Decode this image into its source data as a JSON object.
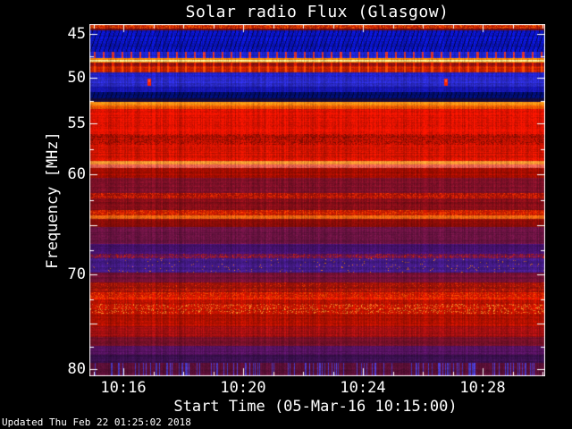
{
  "title": "Solar radio Flux (Glasgow)",
  "x_axis": {
    "label": "Start Time (05-Mar-16 10:15:00)"
  },
  "y_axis": {
    "label": "Frequency [MHz]"
  },
  "footer": {
    "updated": "Updated Thu Feb 22 01:25:02 2018"
  },
  "colors": {
    "text": "#ffffff",
    "background": "#000000",
    "frame": "#ffffff"
  },
  "chart_data": {
    "type": "heatmap",
    "title": "Solar radio Flux (Glasgow)",
    "xlabel": "Start Time (05-Mar-16 10:15:00)",
    "ylabel": "Frequency [MHz]",
    "x_start": "10:15",
    "x_end": "10:30",
    "x_minutes_total": 15,
    "x_minor_tick_interval_min": 1,
    "x_major_ticks": [
      {
        "minute": 1,
        "label": "10:16"
      },
      {
        "minute": 5,
        "label": "10:20"
      },
      {
        "minute": 9,
        "label": "10:24"
      },
      {
        "minute": 13,
        "label": "10:28"
      }
    ],
    "y_ticks": [
      {
        "mhz": 45,
        "label": "45"
      },
      {
        "mhz": 50,
        "label": "50"
      },
      {
        "mhz": 55,
        "label": "55"
      },
      {
        "mhz": 60,
        "label": "60"
      },
      {
        "mhz": 65,
        "label": null
      },
      {
        "mhz": 70,
        "label": "70"
      },
      {
        "mhz": 75,
        "label": null
      },
      {
        "mhz": 80,
        "label": "80"
      }
    ],
    "y_range_mhz": [
      44.0,
      80.7
    ],
    "y_axis_inverted": true,
    "y_calibration": [
      [
        44.0,
        1
      ],
      [
        45,
        11
      ],
      [
        50,
        60
      ],
      [
        55,
        111
      ],
      [
        60,
        168
      ],
      [
        65,
        225
      ],
      [
        70,
        280
      ],
      [
        75,
        335
      ],
      [
        80,
        386
      ],
      [
        80.7,
        392
      ]
    ],
    "colormap": "blue=quiet, red=strong, yellow=intense RFI",
    "bands": [
      {
        "f0": 44.0,
        "f1": 44.35,
        "base": "#bb1e00",
        "tex": "speckle",
        "accent": "#ff6600",
        "density": 0.35
      },
      {
        "f0": 44.35,
        "f1": 44.6,
        "base": "#6a0c10",
        "tex": "noise"
      },
      {
        "f0": 44.6,
        "f1": 47.0,
        "base": "#0a14c8",
        "tex": "diag"
      },
      {
        "f0": 47.0,
        "f1": 47.75,
        "base": "#1a22c4",
        "tex": "redspikes",
        "accent": "#ff3300"
      },
      {
        "f0": 47.75,
        "f1": 48.2,
        "base": "#ffef9a",
        "tex": "yellowline",
        "accent": "#ff8800"
      },
      {
        "f0": 48.2,
        "f1": 48.65,
        "base": "#8c1010",
        "tex": "redspikes",
        "accent": "#ee2200"
      },
      {
        "f0": 48.65,
        "f1": 49.3,
        "base": "#c42100",
        "tex": "redspikes",
        "accent": "#ff5500"
      },
      {
        "f0": 49.3,
        "f1": 50.0,
        "base": "#2222cc",
        "tex": "noise"
      },
      {
        "f0": 50.0,
        "f1": 50.9,
        "base": "#2a2ac8",
        "tex": "noise"
      },
      {
        "f0": 50.9,
        "f1": 51.55,
        "base": "#1616aa",
        "tex": "noise"
      },
      {
        "f0": 51.55,
        "f1": 52.25,
        "base": "#000d72",
        "tex": "diag"
      },
      {
        "f0": 52.25,
        "f1": 52.55,
        "base": "#140a38",
        "tex": "noise"
      },
      {
        "f0": 52.55,
        "f1": 53.0,
        "base": "#ff8e12",
        "tex": "noise"
      },
      {
        "f0": 53.0,
        "f1": 53.4,
        "base": "#f05800",
        "tex": "noise"
      },
      {
        "f0": 53.4,
        "f1": 56.0,
        "base": "#e61300",
        "tex": "noise"
      },
      {
        "f0": 56.0,
        "f1": 57.1,
        "base": "#c41100",
        "tex": "darkdots",
        "accent": "#700900",
        "density": 0.3
      },
      {
        "f0": 57.1,
        "f1": 58.6,
        "base": "#cf1300",
        "tex": "noise"
      },
      {
        "f0": 58.6,
        "f1": 58.95,
        "base": "#ff9430",
        "tex": "noise"
      },
      {
        "f0": 58.95,
        "f1": 59.3,
        "base": "#e86050",
        "tex": "noise"
      },
      {
        "f0": 59.3,
        "f1": 60.3,
        "base": "#a30d00",
        "tex": "noise"
      },
      {
        "f0": 60.3,
        "f1": 61.8,
        "base": "#7e1028",
        "tex": "noise"
      },
      {
        "f0": 61.8,
        "f1": 62.35,
        "base": "#aa1208",
        "tex": "speckle",
        "accent": "#ff3300",
        "density": 0.3
      },
      {
        "f0": 62.35,
        "f1": 63.45,
        "base": "#860e18",
        "tex": "noise"
      },
      {
        "f0": 63.45,
        "f1": 64.0,
        "base": "#c81a00",
        "tex": "speckle",
        "accent": "#ff4d00",
        "density": 0.3
      },
      {
        "f0": 64.0,
        "f1": 64.35,
        "base": "#dd6010",
        "tex": "noise"
      },
      {
        "f0": 64.35,
        "f1": 65.1,
        "base": "#930d08",
        "tex": "noise"
      },
      {
        "f0": 65.1,
        "f1": 66.9,
        "base": "#6b1342",
        "tex": "noise"
      },
      {
        "f0": 66.9,
        "f1": 67.85,
        "base": "#45116b",
        "tex": "noise"
      },
      {
        "f0": 67.85,
        "f1": 68.35,
        "base": "#641455",
        "tex": "speckle",
        "accent": "#d62200",
        "density": 0.25
      },
      {
        "f0": 68.35,
        "f1": 69.8,
        "base": "#431a85",
        "tex": "speckle",
        "accent": "#ff8800",
        "density": 0.025
      },
      {
        "f0": 69.8,
        "f1": 70.75,
        "base": "#731033",
        "tex": "noise"
      },
      {
        "f0": 70.75,
        "f1": 71.8,
        "base": "#a01208",
        "tex": "speckle",
        "accent": "#e03300",
        "density": 0.12
      },
      {
        "f0": 71.8,
        "f1": 72.5,
        "base": "#d41700",
        "tex": "speckle",
        "accent": "#ff5500",
        "density": 0.25
      },
      {
        "f0": 72.5,
        "f1": 73.0,
        "base": "#bc1200",
        "tex": "noise"
      },
      {
        "f0": 73.0,
        "f1": 74.0,
        "base": "#c61400",
        "tex": "speckle",
        "accent": "#ffa830",
        "density": 0.18
      },
      {
        "f0": 74.0,
        "f1": 75.2,
        "base": "#ad1000",
        "tex": "noise"
      },
      {
        "f0": 75.2,
        "f1": 76.4,
        "base": "#a00f10",
        "tex": "noise"
      },
      {
        "f0": 76.4,
        "f1": 77.4,
        "base": "#741028",
        "tex": "noise"
      },
      {
        "f0": 77.4,
        "f1": 78.4,
        "base": "#54125e",
        "tex": "noise"
      },
      {
        "f0": 78.4,
        "f1": 79.3,
        "base": "#3c1050",
        "tex": "noise"
      },
      {
        "f0": 79.3,
        "f1": 80.7,
        "base": "#5a0f36",
        "tex": "bluestreaks",
        "accent": "#4444e8",
        "density": 0.16
      }
    ],
    "features": [
      {
        "minute": 1.87,
        "mhz": 50.45,
        "color": "#ff2200",
        "note": "red burst blip"
      },
      {
        "minute": 11.78,
        "mhz": 50.45,
        "color": "#ff2200",
        "note": "red burst blip"
      }
    ]
  }
}
